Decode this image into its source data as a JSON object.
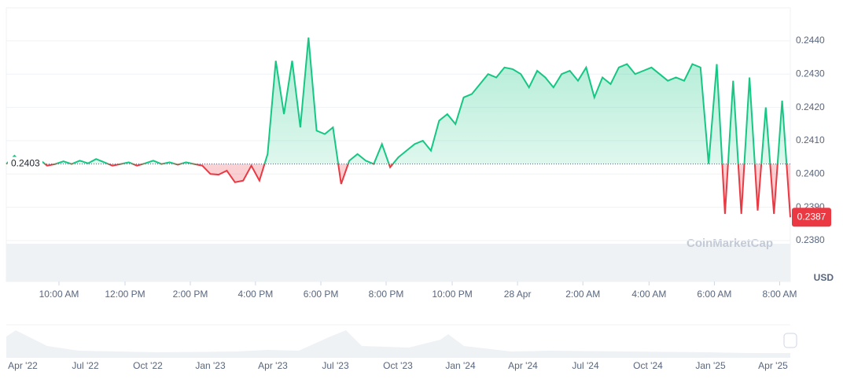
{
  "chart_data": {
    "type": "line",
    "values": [
      0.2403,
      0.24055,
      0.2403,
      0.24032,
      0.24045,
      0.24025,
      0.2403,
      0.24038,
      0.2403,
      0.2404,
      0.24032,
      0.24045,
      0.24035,
      0.24025,
      0.2403,
      0.24035,
      0.24025,
      0.24032,
      0.2404,
      0.2403,
      0.24035,
      0.24028,
      0.24035,
      0.2403,
      0.24025,
      0.24,
      0.23998,
      0.2401,
      0.23975,
      0.2398,
      0.24025,
      0.2398,
      0.2406,
      0.2434,
      0.2418,
      0.2434,
      0.2414,
      0.2441,
      0.2413,
      0.2412,
      0.2414,
      0.2397,
      0.2404,
      0.2406,
      0.2404,
      0.2403,
      0.2409,
      0.2402,
      0.2405,
      0.2407,
      0.2409,
      0.241,
      0.2407,
      0.2416,
      0.2418,
      0.2415,
      0.2423,
      0.2424,
      0.2427,
      0.243,
      0.2429,
      0.2432,
      0.24315,
      0.243,
      0.2426,
      0.2431,
      0.2429,
      0.2426,
      0.243,
      0.2431,
      0.2428,
      0.2432,
      0.2423,
      0.2429,
      0.2427,
      0.2432,
      0.2433,
      0.243,
      0.2431,
      0.2432,
      0.243,
      0.2428,
      0.2429,
      0.2428,
      0.2433,
      0.2432,
      0.2403,
      0.2433,
      0.2388,
      0.2428,
      0.2388,
      0.2429,
      0.2389,
      0.242,
      0.2388,
      0.2422,
      0.2387
    ],
    "baseline": 0.2403,
    "last_price": 0.2387,
    "up_color": "#16c784",
    "down_color": "#ea3943",
    "xlim": [
      0,
      96
    ],
    "xticks": [
      {
        "value": 6.45,
        "label": "10:00 AM"
      },
      {
        "value": 14.54,
        "label": "12:00 PM"
      },
      {
        "value": 22.53,
        "label": "2:00 PM"
      },
      {
        "value": 30.51,
        "label": "4:00 PM"
      },
      {
        "value": 38.52,
        "label": "6:00 PM"
      },
      {
        "value": 46.51,
        "label": "8:00 PM"
      },
      {
        "value": 54.6,
        "label": "10:00 PM"
      },
      {
        "value": 62.6,
        "label": "28 Apr"
      },
      {
        "value": 70.6,
        "label": "2:00 AM"
      },
      {
        "value": 78.7,
        "label": "4:00 AM"
      },
      {
        "value": 86.7,
        "label": "6:00 AM"
      },
      {
        "value": 94.7,
        "label": "8:00 AM"
      }
    ],
    "ylim": [
      0.23677,
      0.24499
    ],
    "yticks": [
      {
        "value": 0.238,
        "label": "0.2380"
      },
      {
        "value": 0.239,
        "label": "0.2390"
      },
      {
        "value": 0.24,
        "label": "0.2400"
      },
      {
        "value": 0.241,
        "label": "0.2410"
      },
      {
        "value": 0.242,
        "label": "0.2420"
      },
      {
        "value": 0.243,
        "label": "0.2430"
      },
      {
        "value": 0.244,
        "label": "0.2440"
      }
    ],
    "grid": true,
    "currency": "USD",
    "watermark": "CoinMarketCap",
    "navigator_labels": [
      "Apr '22",
      "Jul '22",
      "Oct '22",
      "Jan '23",
      "Apr '23",
      "Jul '23",
      "Oct '23",
      "Jan '24",
      "Apr '24",
      "Jul '24",
      "Oct '24",
      "Jan '25",
      "Apr '25"
    ]
  }
}
